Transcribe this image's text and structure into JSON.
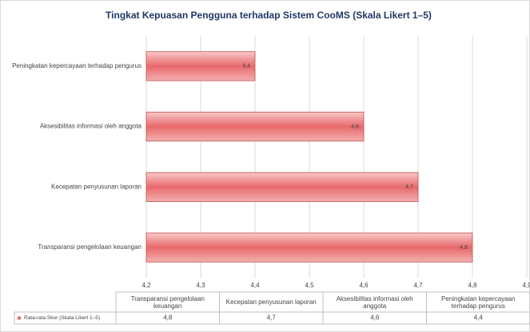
{
  "chart_data": {
    "type": "barh",
    "title": "Tingkat Kepuasan Pengguna terhadap Sistem CooMS (Skala Likert 1–5)",
    "categories": [
      "Transparansi pengelolaan keuangan",
      "Kecepatan penyusunan laporan",
      "Aksesibilitas informasi oleh anggota",
      "Peningkatan kepercayaan terhadap pengurus"
    ],
    "series": [
      {
        "name": "Rata-rata Skor (Skala Likert 1–5)",
        "color": "#e8696b",
        "values": [
          4.8,
          4.7,
          4.6,
          4.4
        ],
        "value_labels": [
          "4,8",
          "4,7",
          "4,6",
          "4,4"
        ]
      }
    ],
    "xlim": [
      4.2,
      4.9
    ],
    "xticks": [
      {
        "value": 4.2,
        "label": "4,2"
      },
      {
        "value": 4.3,
        "label": "4,3"
      },
      {
        "value": 4.4,
        "label": "4,4"
      },
      {
        "value": 4.5,
        "label": "4,5"
      },
      {
        "value": 4.6,
        "label": "4,6"
      },
      {
        "value": 4.7,
        "label": "4,7"
      },
      {
        "value": 4.8,
        "label": "4,8"
      },
      {
        "value": 4.9,
        "label": "4,9"
      }
    ],
    "grid": true,
    "data_table": true
  }
}
